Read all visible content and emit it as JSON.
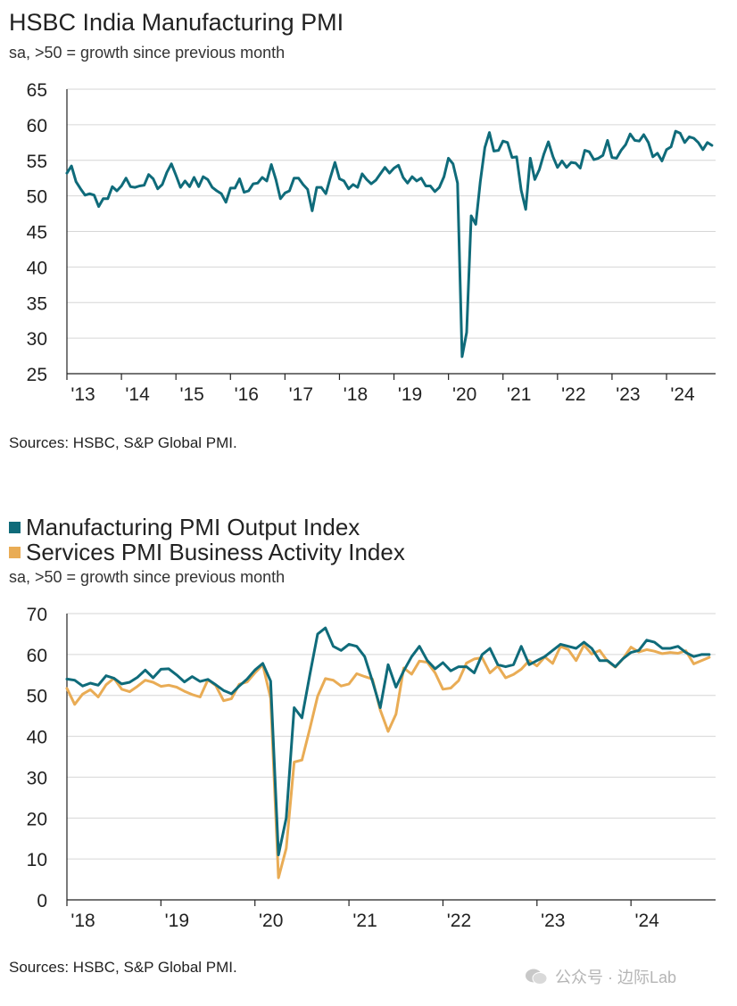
{
  "chart1": {
    "title": "HSBC India Manufacturing PMI",
    "subtitle": "sa, >50 = growth since previous month",
    "source": "Sources: HSBC, S&P Global PMI."
  },
  "chart2": {
    "legend": [
      {
        "label": "Manufacturing PMI Output Index",
        "color": "#0f6b7a"
      },
      {
        "label": "Services PMI Business Activity Index",
        "color": "#e9ac55"
      }
    ],
    "subtitle": "sa, >50 = growth since previous month",
    "source": "Sources: HSBC, S&P Global PMI."
  },
  "watermark": "公众号 · 边际Lab",
  "chart_data": [
    {
      "type": "line",
      "title": "HSBC India Manufacturing PMI",
      "ylabel": "sa, >50 = growth since previous month",
      "ylim": [
        25,
        65
      ],
      "yticks": [
        25,
        30,
        35,
        40,
        45,
        50,
        55,
        60,
        65
      ],
      "xlim": [
        2013,
        2024.9
      ],
      "xticks": [
        {
          "x": 2013,
          "label": "'13"
        },
        {
          "x": 2014,
          "label": "'14"
        },
        {
          "x": 2015,
          "label": "'15"
        },
        {
          "x": 2016,
          "label": "'16"
        },
        {
          "x": 2017,
          "label": "'17"
        },
        {
          "x": 2018,
          "label": "'18"
        },
        {
          "x": 2019,
          "label": "'19"
        },
        {
          "x": 2020,
          "label": "'20"
        },
        {
          "x": 2021,
          "label": "'21"
        },
        {
          "x": 2022,
          "label": "'22"
        },
        {
          "x": 2023,
          "label": "'23"
        },
        {
          "x": 2024,
          "label": "'24"
        }
      ],
      "series": [
        {
          "name": "HSBC India Manufacturing PMI",
          "color": "#0f6b7a",
          "x": [
            2013.0,
            2013.083,
            2013.167,
            2013.25,
            2013.333,
            2013.417,
            2013.5,
            2013.583,
            2013.667,
            2013.75,
            2013.833,
            2013.917,
            2014.0,
            2014.083,
            2014.167,
            2014.25,
            2014.333,
            2014.417,
            2014.5,
            2014.583,
            2014.667,
            2014.75,
            2014.833,
            2014.917,
            2015.0,
            2015.083,
            2015.167,
            2015.25,
            2015.333,
            2015.417,
            2015.5,
            2015.583,
            2015.667,
            2015.75,
            2015.833,
            2015.917,
            2016.0,
            2016.083,
            2016.167,
            2016.25,
            2016.333,
            2016.417,
            2016.5,
            2016.583,
            2016.667,
            2016.75,
            2016.833,
            2016.917,
            2017.0,
            2017.083,
            2017.167,
            2017.25,
            2017.333,
            2017.417,
            2017.5,
            2017.583,
            2017.667,
            2017.75,
            2017.833,
            2017.917,
            2018.0,
            2018.083,
            2018.167,
            2018.25,
            2018.333,
            2018.417,
            2018.5,
            2018.583,
            2018.667,
            2018.75,
            2018.833,
            2018.917,
            2019.0,
            2019.083,
            2019.167,
            2019.25,
            2019.333,
            2019.417,
            2019.5,
            2019.583,
            2019.667,
            2019.75,
            2019.833,
            2019.917,
            2020.0,
            2020.083,
            2020.167,
            2020.25,
            2020.333,
            2020.417,
            2020.5,
            2020.583,
            2020.667,
            2020.75,
            2020.833,
            2020.917,
            2021.0,
            2021.083,
            2021.167,
            2021.25,
            2021.333,
            2021.417,
            2021.5,
            2021.583,
            2021.667,
            2021.75,
            2021.833,
            2021.917,
            2022.0,
            2022.083,
            2022.167,
            2022.25,
            2022.333,
            2022.417,
            2022.5,
            2022.583,
            2022.667,
            2022.75,
            2022.833,
            2022.917,
            2023.0,
            2023.083,
            2023.167,
            2023.25,
            2023.333,
            2023.417,
            2023.5,
            2023.583,
            2023.667,
            2023.75,
            2023.833,
            2023.917,
            2024.0,
            2024.083,
            2024.167,
            2024.25,
            2024.333,
            2024.417,
            2024.5,
            2024.583,
            2024.667,
            2024.75,
            2024.833
          ],
          "values": [
            53.2,
            54.2,
            52.0,
            51.0,
            50.1,
            50.3,
            50.1,
            48.5,
            49.6,
            49.6,
            51.3,
            50.7,
            51.4,
            52.5,
            51.3,
            51.2,
            51.4,
            51.5,
            53.0,
            52.4,
            51.0,
            51.6,
            53.3,
            54.5,
            52.9,
            51.2,
            52.1,
            51.3,
            52.6,
            51.3,
            52.7,
            52.3,
            51.2,
            50.7,
            50.3,
            49.1,
            51.1,
            51.1,
            52.4,
            50.5,
            50.7,
            51.7,
            51.8,
            52.6,
            52.1,
            54.4,
            52.3,
            49.6,
            50.4,
            50.7,
            52.5,
            52.5,
            51.6,
            50.9,
            47.9,
            51.2,
            51.2,
            50.3,
            52.6,
            54.7,
            52.4,
            52.1,
            51.0,
            51.6,
            51.2,
            53.1,
            52.3,
            51.7,
            52.2,
            53.1,
            54.0,
            53.2,
            53.9,
            54.3,
            52.6,
            51.8,
            52.7,
            52.1,
            52.5,
            51.4,
            51.4,
            50.6,
            51.2,
            52.7,
            55.3,
            54.5,
            51.8,
            27.4,
            30.8,
            47.2,
            46.0,
            52.0,
            56.8,
            58.9,
            56.3,
            56.4,
            57.7,
            57.5,
            55.4,
            55.5,
            50.8,
            48.1,
            55.3,
            52.3,
            53.7,
            55.9,
            57.6,
            55.5,
            54.0,
            54.9,
            54.0,
            54.7,
            54.6,
            53.9,
            56.4,
            56.2,
            55.1,
            55.3,
            55.7,
            57.8,
            55.4,
            55.3,
            56.4,
            57.2,
            58.7,
            57.8,
            57.7,
            58.6,
            57.5,
            55.5,
            56.0,
            54.9,
            56.5,
            56.9,
            59.1,
            58.8,
            57.5,
            58.3,
            58.1,
            57.5,
            56.5,
            57.5,
            57.1
          ]
        }
      ]
    },
    {
      "type": "line",
      "title": "",
      "ylabel": "sa, >50 = growth since previous month",
      "ylim": [
        0,
        70
      ],
      "yticks": [
        0,
        10,
        20,
        30,
        40,
        50,
        60,
        70
      ],
      "xlim": [
        2018,
        2024.9
      ],
      "xticks": [
        {
          "x": 2018,
          "label": "'18"
        },
        {
          "x": 2019,
          "label": "'19"
        },
        {
          "x": 2020,
          "label": "'20"
        },
        {
          "x": 2021,
          "label": "'21"
        },
        {
          "x": 2022,
          "label": "'22"
        },
        {
          "x": 2023,
          "label": "'23"
        },
        {
          "x": 2024,
          "label": "'24"
        }
      ],
      "series": [
        {
          "name": "Manufacturing PMI Output Index",
          "color": "#0f6b7a",
          "x": [
            2018.0,
            2018.083,
            2018.167,
            2018.25,
            2018.333,
            2018.417,
            2018.5,
            2018.583,
            2018.667,
            2018.75,
            2018.833,
            2018.917,
            2019.0,
            2019.083,
            2019.167,
            2019.25,
            2019.333,
            2019.417,
            2019.5,
            2019.583,
            2019.667,
            2019.75,
            2019.833,
            2019.917,
            2020.0,
            2020.083,
            2020.167,
            2020.25,
            2020.333,
            2020.417,
            2020.5,
            2020.583,
            2020.667,
            2020.75,
            2020.833,
            2020.917,
            2021.0,
            2021.083,
            2021.167,
            2021.25,
            2021.333,
            2021.417,
            2021.5,
            2021.583,
            2021.667,
            2021.75,
            2021.833,
            2021.917,
            2022.0,
            2022.083,
            2022.167,
            2022.25,
            2022.333,
            2022.417,
            2022.5,
            2022.583,
            2022.667,
            2022.75,
            2022.833,
            2022.917,
            2023.0,
            2023.083,
            2023.167,
            2023.25,
            2023.333,
            2023.417,
            2023.5,
            2023.583,
            2023.667,
            2023.75,
            2023.833,
            2023.917,
            2024.0,
            2024.083,
            2024.167,
            2024.25,
            2024.333,
            2024.417,
            2024.5,
            2024.583,
            2024.667,
            2024.75,
            2024.833
          ],
          "values": [
            54.0,
            53.7,
            52.3,
            53.0,
            52.5,
            54.8,
            54.2,
            52.8,
            53.2,
            54.4,
            56.2,
            54.3,
            56.4,
            56.5,
            55.0,
            53.3,
            54.6,
            53.4,
            53.9,
            52.6,
            51.2,
            50.4,
            52.3,
            54.0,
            56.2,
            57.8,
            53.5,
            11.0,
            20.0,
            47.0,
            44.5,
            55.0,
            65.0,
            66.5,
            62.0,
            61.0,
            62.5,
            62.0,
            59.5,
            53.5,
            47.0,
            57.5,
            52.0,
            56.0,
            59.5,
            62.0,
            58.5,
            56.5,
            58.0,
            56.0,
            57.0,
            57.0,
            55.5,
            60.0,
            61.5,
            57.5,
            57.0,
            57.5,
            62.0,
            57.5,
            58.5,
            59.5,
            61.0,
            62.5,
            62.0,
            61.5,
            63.0,
            61.5,
            58.5,
            58.5,
            57.0,
            59.0,
            60.5,
            61.0,
            63.5,
            63.0,
            61.5,
            61.5,
            62.0,
            60.5,
            59.5,
            60.0,
            60.0
          ]
        },
        {
          "name": "Services PMI Business Activity Index",
          "color": "#e9ac55",
          "x": [
            2018.0,
            2018.083,
            2018.167,
            2018.25,
            2018.333,
            2018.417,
            2018.5,
            2018.583,
            2018.667,
            2018.75,
            2018.833,
            2018.917,
            2019.0,
            2019.083,
            2019.167,
            2019.25,
            2019.333,
            2019.417,
            2019.5,
            2019.583,
            2019.667,
            2019.75,
            2019.833,
            2019.917,
            2020.0,
            2020.083,
            2020.167,
            2020.25,
            2020.333,
            2020.417,
            2020.5,
            2020.583,
            2020.667,
            2020.75,
            2020.833,
            2020.917,
            2021.0,
            2021.083,
            2021.167,
            2021.25,
            2021.333,
            2021.417,
            2021.5,
            2021.583,
            2021.667,
            2021.75,
            2021.833,
            2021.917,
            2022.0,
            2022.083,
            2022.167,
            2022.25,
            2022.333,
            2022.417,
            2022.5,
            2022.583,
            2022.667,
            2022.75,
            2022.833,
            2022.917,
            2023.0,
            2023.083,
            2023.167,
            2023.25,
            2023.333,
            2023.417,
            2023.5,
            2023.583,
            2023.667,
            2023.75,
            2023.833,
            2023.917,
            2024.0,
            2024.083,
            2024.167,
            2024.25,
            2024.333,
            2024.417,
            2024.5,
            2024.583,
            2024.667,
            2024.75,
            2024.833
          ],
          "values": [
            51.7,
            47.8,
            50.3,
            51.4,
            49.6,
            52.6,
            54.2,
            51.5,
            50.9,
            52.2,
            53.7,
            53.2,
            52.2,
            52.5,
            52.0,
            51.0,
            50.2,
            49.6,
            53.8,
            52.4,
            48.7,
            49.2,
            52.7,
            53.3,
            55.5,
            57.5,
            49.3,
            5.4,
            12.6,
            33.7,
            34.2,
            41.8,
            49.8,
            54.1,
            53.7,
            52.3,
            52.8,
            55.3,
            54.6,
            54.0,
            46.4,
            41.2,
            45.4,
            56.7,
            55.2,
            58.4,
            58.1,
            55.5,
            51.5,
            51.8,
            53.6,
            57.9,
            58.9,
            59.2,
            55.5,
            57.2,
            54.3,
            55.1,
            56.4,
            58.5,
            57.2,
            59.4,
            57.8,
            62.0,
            61.2,
            58.5,
            62.3,
            60.1,
            61.0,
            58.4,
            56.9,
            59.0,
            61.8,
            60.6,
            61.2,
            60.8,
            60.2,
            60.5,
            60.3,
            60.9,
            57.7,
            58.5,
            59.3
          ]
        }
      ]
    }
  ]
}
